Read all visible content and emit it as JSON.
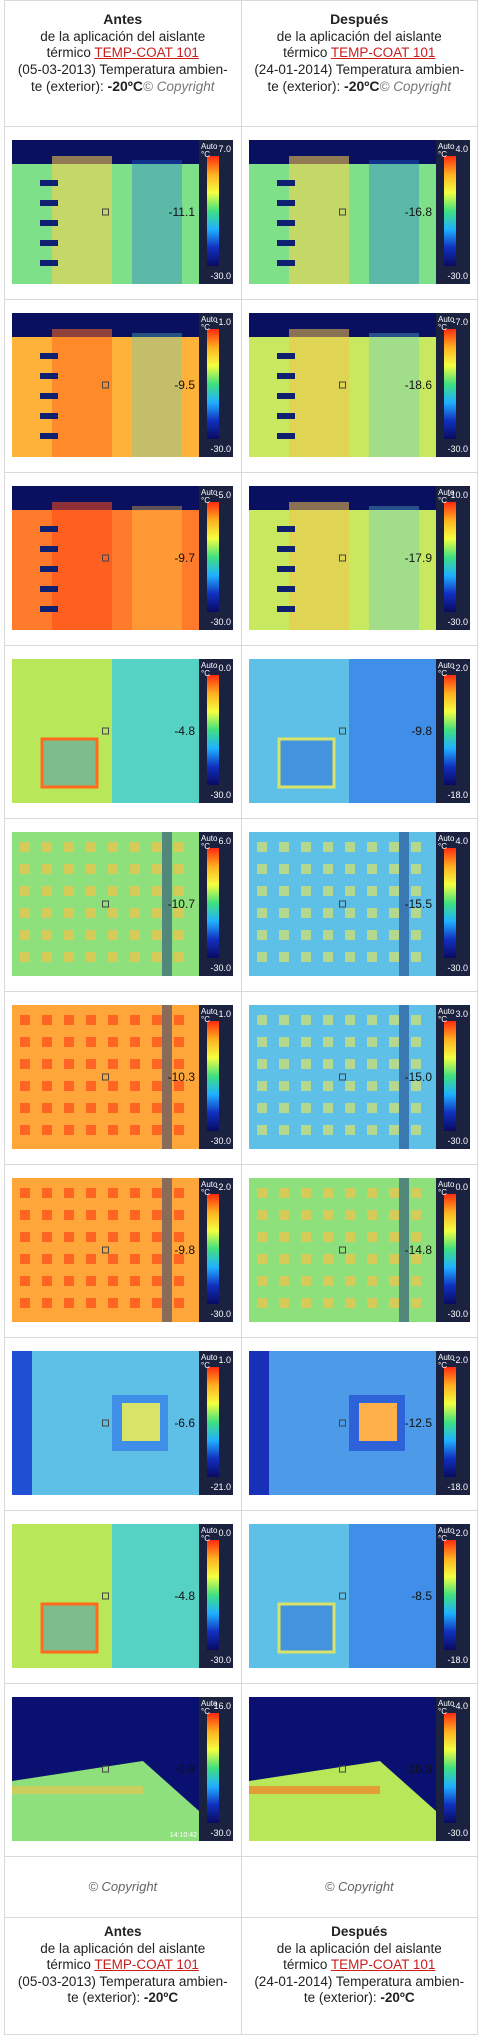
{
  "header": {
    "left": {
      "title": "Antes",
      "line1": "de la aplicación del aislante",
      "line2_prefix": "térmico ",
      "brand": "TEMP-COAT 101",
      "line3": "(05-03-2013) Temperatura ambien-",
      "line4_prefix": "te (exterior): ",
      "temp": "-20ºC",
      "copyright": "© Copyright"
    },
    "right": {
      "title": "Después",
      "line1": "de la aplicación del aislante",
      "line2_prefix": "térmico ",
      "brand": "TEMP-COAT 101",
      "line3": "(24-01-2014) Temperatura ambien-",
      "line4_prefix": "te (exterior): ",
      "temp": "-20ºC",
      "copyright": "© Copyright"
    }
  },
  "scale_unit": "Auto\n°C",
  "rows": [
    {
      "left": {
        "max": "7.0",
        "min": "-30.0",
        "spot": "-11.1",
        "scene": "dark",
        "palette": "cold"
      },
      "right": {
        "max": "4.0",
        "min": "-30.0",
        "spot": "-16.8",
        "scene": "dark",
        "palette": "cold"
      }
    },
    {
      "left": {
        "max": "-1.0",
        "min": "-30.0",
        "spot": "-9.5",
        "scene": "dark",
        "palette": "warm"
      },
      "right": {
        "max": "-7.0",
        "min": "-30.0",
        "spot": "-18.6",
        "scene": "dark",
        "palette": "cool"
      }
    },
    {
      "left": {
        "max": "-5.0",
        "min": "-30.0",
        "spot": "-9.7",
        "scene": "dark",
        "palette": "hot"
      },
      "right": {
        "max": "-10.0",
        "min": "-30.0",
        "spot": "-17.9",
        "scene": "dark",
        "palette": "cool"
      }
    },
    {
      "left": {
        "max": "0.0",
        "min": "-30.0",
        "spot": "-4.8",
        "scene": "wall",
        "palette": "warm"
      },
      "right": {
        "max": "-2.0",
        "min": "-18.0",
        "spot": "-9.8",
        "scene": "wall",
        "palette": "blue"
      }
    },
    {
      "left": {
        "max": "6.0",
        "min": "-30.0",
        "spot": "-10.7",
        "scene": "facade",
        "palette": "cool"
      },
      "right": {
        "max": "4.0",
        "min": "-30.0",
        "spot": "-15.5",
        "scene": "facade",
        "palette": "blue"
      }
    },
    {
      "left": {
        "max": "-1.0",
        "min": "-30.0",
        "spot": "-10.3",
        "scene": "facade",
        "palette": "hot"
      },
      "right": {
        "max": "3.0",
        "min": "-30.0",
        "spot": "-15.0",
        "scene": "facade",
        "palette": "blue"
      }
    },
    {
      "left": {
        "max": "-2.0",
        "min": "-30.0",
        "spot": "-9.8",
        "scene": "facade",
        "palette": "hot"
      },
      "right": {
        "max": "0.0",
        "min": "-30.0",
        "spot": "-14.8",
        "scene": "facade",
        "palette": "cool"
      }
    },
    {
      "left": {
        "max": "1.0",
        "min": "-21.0",
        "spot": "-6.6",
        "scene": "window",
        "palette": "blue"
      },
      "right": {
        "max": "-2.0",
        "min": "-18.0",
        "spot": "-12.5",
        "scene": "window",
        "palette": "deep"
      }
    },
    {
      "left": {
        "max": "0.0",
        "min": "-30.0",
        "spot": "-4.8",
        "scene": "wall",
        "palette": "warm"
      },
      "right": {
        "max": "-2.0",
        "min": "-18.0",
        "spot": "-8.5",
        "scene": "wall",
        "palette": "blue"
      }
    },
    {
      "left": {
        "max": "16.0",
        "min": "-30.0",
        "spot": "-0.9",
        "scene": "roof",
        "palette": "cool",
        "time": "14:10:42"
      },
      "right": {
        "max": "-4.0",
        "min": "-30.0",
        "spot": "-10.3",
        "scene": "roof",
        "palette": "warm"
      }
    }
  ],
  "footer": {
    "copyright": "© Copyright"
  }
}
